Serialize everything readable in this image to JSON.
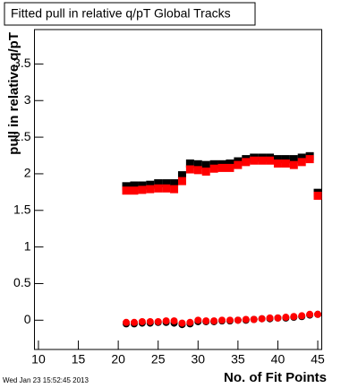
{
  "chart_data": {
    "type": "scatter",
    "title": "Fitted pull in relative q/pT  Global Tracks",
    "x_label": "No. of Fit Points",
    "y_label": "pull in relative q/pT",
    "timestamp": "Wed Jan 23 15:52:45 2013",
    "x": [
      21,
      22,
      23,
      24,
      25,
      26,
      27,
      28,
      29,
      30,
      31,
      32,
      33,
      34,
      35,
      36,
      37,
      38,
      39,
      40,
      41,
      42,
      43,
      44,
      45
    ],
    "series": [
      {
        "marker": "square",
        "color": "#000000",
        "values": [
          1.83,
          1.84,
          1.84,
          1.85,
          1.87,
          1.87,
          1.87,
          1.98,
          2.14,
          2.13,
          2.12,
          2.13,
          2.13,
          2.14,
          2.17,
          2.2,
          2.22,
          2.22,
          2.22,
          2.2,
          2.2,
          2.2,
          2.22,
          2.24,
          1.74
        ]
      },
      {
        "marker": "square",
        "color": "#ff0000",
        "values": [
          1.77,
          1.77,
          1.78,
          1.79,
          1.8,
          1.8,
          1.79,
          1.9,
          2.06,
          2.05,
          2.03,
          2.07,
          2.08,
          2.08,
          2.12,
          2.16,
          2.18,
          2.18,
          2.18,
          2.14,
          2.14,
          2.12,
          2.16,
          2.2,
          1.7
        ]
      },
      {
        "marker": "circle",
        "color": "#000000",
        "values": [
          -0.05,
          -0.05,
          -0.04,
          -0.04,
          -0.03,
          -0.03,
          -0.04,
          -0.06,
          -0.05,
          -0.02,
          -0.02,
          -0.02,
          -0.01,
          -0.01,
          0,
          0,
          0.01,
          0.02,
          0.02,
          0.03,
          0.03,
          0.04,
          0.05,
          0.07,
          0.08
        ]
      },
      {
        "marker": "circle",
        "color": "#ff0000",
        "values": [
          -0.03,
          -0.03,
          -0.02,
          -0.02,
          -0.02,
          -0.01,
          -0.01,
          -0.04,
          -0.03,
          0,
          -0.01,
          -0.01,
          0,
          0,
          0,
          0.01,
          0.01,
          0.02,
          0.03,
          0.03,
          0.04,
          0.05,
          0.06,
          0.08,
          0.08
        ]
      }
    ],
    "xlim": [
      9.5,
      45.5
    ],
    "xticks": [
      10,
      15,
      20,
      25,
      30,
      35,
      40,
      45
    ],
    "ylim": [
      -0.4,
      3.97
    ],
    "yticks": [
      0,
      0.5,
      1,
      1.5,
      2,
      2.5,
      3,
      3.5
    ],
    "grid": false
  }
}
